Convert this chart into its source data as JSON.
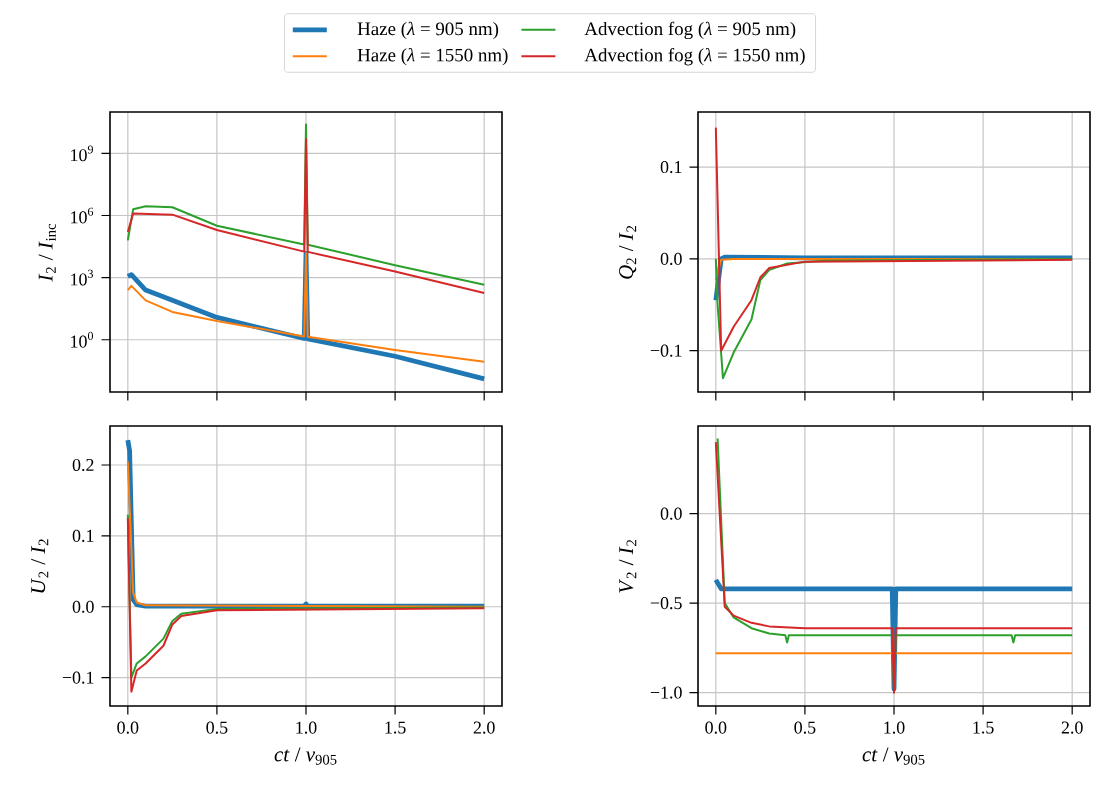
{
  "chart_data": [
    {
      "type": "line",
      "ylabel": "*I*$_{2}$ / *I*$_{inc}$",
      "log": "y",
      "grid": true,
      "legend": "top",
      "tick_labels": "y",
      "xlim": [
        -0.1,
        2.1
      ],
      "ylim": [
        0.003,
        100000000000.0
      ],
      "xticks": [
        0,
        0.5,
        1,
        1.5,
        2
      ],
      "yticks": [
        {
          "value": 1,
          "label": "10$^{0}$"
        },
        {
          "value": 1000,
          "label": "10$^{3}$"
        },
        {
          "value": 1000000,
          "label": "10$^{6}$"
        },
        {
          "value": 1000000000,
          "label": "10$^{9}$"
        }
      ],
      "series": [
        {
          "name": "Haze (*λ* = 905 nm)",
          "color": "#1f77b4",
          "x": [
            0,
            0.02,
            0.1,
            0.25,
            0.5,
            0.99,
            1.0,
            1.01,
            1.5,
            2.0
          ],
          "values": [
            1150,
            1400,
            250,
            80,
            12,
            1.15,
            15000,
            1.1,
            0.16,
            0.013
          ]
        },
        {
          "name": "Haze (*λ* = 1550 nm)",
          "color": "#ff7f0e",
          "x": [
            0,
            0.02,
            0.1,
            0.25,
            0.5,
            0.99,
            1.0,
            1.01,
            1.5,
            2.0
          ],
          "values": [
            250,
            400,
            80,
            22,
            8,
            1.45,
            15000,
            1.4,
            0.32,
            0.087
          ]
        },
        {
          "name": "Advection fog (*λ* = 905 nm)",
          "color": "#2ca02c",
          "x": [
            0,
            0.03,
            0.1,
            0.25,
            0.5,
            0.99,
            1.0,
            1.01,
            1.5,
            2.0
          ],
          "values": [
            63000,
            2000000,
            2800000,
            2500000,
            320000,
            40000,
            25000000000,
            39000,
            4000,
            450
          ]
        },
        {
          "name": "Advection fog (*λ* = 1550 nm)",
          "color": "#d62728",
          "x": [
            0,
            0.03,
            0.25,
            0.5,
            0.99,
            1.0,
            1.01,
            1.5,
            2.0
          ],
          "values": [
            160000,
            1260000,
            1100000,
            200000,
            18000,
            5000000000,
            17500,
            2000,
            180
          ]
        }
      ]
    },
    {
      "type": "line",
      "ylabel": "*Q*$_{2}$ / *I*$_{2}$",
      "grid": true,
      "tick_labels": "y",
      "xlim": [
        -0.1,
        2.1
      ],
      "ylim": [
        -0.145,
        0.16
      ],
      "xticks": [
        0,
        0.5,
        1,
        1.5,
        2
      ],
      "yticks": [
        {
          "value": -0.1,
          "label": "−0.1"
        },
        {
          "value": 0,
          "label": "0.0"
        },
        {
          "value": 0.1,
          "label": "0.1"
        }
      ],
      "series": [
        {
          "color": "#1f77b4",
          "x": [
            0,
            0.03,
            0.05,
            0.5,
            1.0,
            1.5,
            2.0
          ],
          "values": [
            -0.045,
            0.0,
            0.002,
            0.001,
            0.001,
            0.001,
            0.001
          ]
        },
        {
          "color": "#ff7f0e",
          "x": [
            0,
            0.03,
            0.1,
            1.0,
            2.0
          ],
          "values": [
            -0.023,
            -0.001,
            0.0,
            0.0,
            0.0
          ]
        },
        {
          "color": "#2ca02c",
          "x": [
            0,
            0.01,
            0.04,
            0.1,
            0.2,
            0.25,
            0.3,
            0.4,
            0.6,
            2.0
          ],
          "values": [
            0.0,
            -0.05,
            -0.13,
            -0.102,
            -0.066,
            -0.023,
            -0.012,
            -0.005,
            -0.002,
            0.0
          ]
        },
        {
          "color": "#d62728",
          "x": [
            0,
            0.03,
            0.1,
            0.2,
            0.25,
            0.3,
            0.5,
            2.0
          ],
          "values": [
            0.143,
            -0.1,
            -0.074,
            -0.045,
            -0.02,
            -0.01,
            -0.003,
            -0.001
          ]
        }
      ]
    },
    {
      "type": "line",
      "xlabel": "*ct* / *v*$_{905}$",
      "ylabel": "*U*$_{2}$ / *I*$_{2}$",
      "grid": true,
      "xlim": [
        -0.1,
        2.1
      ],
      "ylim": [
        -0.14,
        0.255
      ],
      "xticks": [
        {
          "value": 0,
          "label": "0.0"
        },
        {
          "value": 0.5,
          "label": "0.5"
        },
        {
          "value": 1,
          "label": "1.0"
        },
        {
          "value": 1.5,
          "label": "1.5"
        },
        {
          "value": 2,
          "label": "2.0"
        }
      ],
      "yticks": [
        {
          "value": -0.1,
          "label": "−0.1"
        },
        {
          "value": 0,
          "label": "0.0"
        },
        {
          "value": 0.1,
          "label": "0.1"
        },
        {
          "value": 0.2,
          "label": "0.2"
        }
      ],
      "series": [
        {
          "color": "#1f77b4",
          "x": [
            0,
            0.01,
            0.03,
            0.05,
            0.1,
            0.99,
            1.0,
            1.01,
            2.0
          ],
          "values": [
            0.235,
            0.22,
            0.01,
            0.003,
            0.001,
            0.001,
            0.004,
            0.001,
            0.001
          ]
        },
        {
          "color": "#ff7f0e",
          "x": [
            0,
            0.03,
            0.05,
            0.1,
            2.0
          ],
          "values": [
            0.205,
            0.02,
            0.006,
            0.002,
            0.0
          ]
        },
        {
          "color": "#2ca02c",
          "x": [
            0,
            0.02,
            0.05,
            0.1,
            0.2,
            0.25,
            0.3,
            0.5,
            2.0
          ],
          "values": [
            0.13,
            -0.1,
            -0.08,
            -0.07,
            -0.045,
            -0.02,
            -0.01,
            -0.003,
            -0.001
          ]
        },
        {
          "color": "#d62728",
          "x": [
            0,
            0.02,
            0.05,
            0.1,
            0.2,
            0.25,
            0.3,
            0.5,
            2.0
          ],
          "values": [
            0.125,
            -0.12,
            -0.09,
            -0.08,
            -0.055,
            -0.025,
            -0.013,
            -0.005,
            -0.002
          ]
        }
      ]
    },
    {
      "type": "line",
      "xlabel": "*ct* / *v*$_{905}$",
      "ylabel": "*V*$_{2}$ / *I*$_{2}$",
      "grid": true,
      "xlim": [
        -0.1,
        2.1
      ],
      "ylim": [
        -1.075,
        0.49
      ],
      "xticks": [
        {
          "value": 0,
          "label": "0.0"
        },
        {
          "value": 0.5,
          "label": "0.5"
        },
        {
          "value": 1,
          "label": "1.0"
        },
        {
          "value": 1.5,
          "label": "1.5"
        },
        {
          "value": 2,
          "label": "2.0"
        }
      ],
      "yticks": [
        {
          "value": -1,
          "label": "−1.0"
        },
        {
          "value": -0.5,
          "label": "−0.5"
        },
        {
          "value": 0,
          "label": "0.0"
        }
      ],
      "series": [
        {
          "color": "#1f77b4",
          "x": [
            0,
            0.03,
            0.99,
            1.0,
            1.01,
            2.0
          ],
          "values": [
            -0.37,
            -0.42,
            -0.42,
            -0.98,
            -0.42,
            -0.42
          ]
        },
        {
          "color": "#ff7f0e",
          "x": [
            0,
            2.0
          ],
          "values": [
            -0.78,
            -0.78
          ]
        },
        {
          "color": "#2ca02c",
          "x": [
            0.01,
            0.05,
            0.1,
            0.2,
            0.3,
            0.39,
            0.4,
            0.41,
            0.99,
            1.0,
            1.01,
            1.66,
            1.67,
            1.68,
            2.0
          ],
          "values": [
            0.42,
            -0.5,
            -0.58,
            -0.64,
            -0.67,
            -0.68,
            -0.72,
            -0.68,
            -0.68,
            -1.0,
            -0.68,
            -0.68,
            -0.72,
            -0.68,
            -0.68
          ]
        },
        {
          "color": "#d62728",
          "x": [
            0,
            0.05,
            0.1,
            0.2,
            0.3,
            0.5,
            0.99,
            1.0,
            1.01,
            2.0
          ],
          "values": [
            0.4,
            -0.52,
            -0.57,
            -0.61,
            -0.63,
            -0.64,
            -0.64,
            -1.0,
            -0.64,
            -0.64
          ]
        }
      ]
    }
  ]
}
